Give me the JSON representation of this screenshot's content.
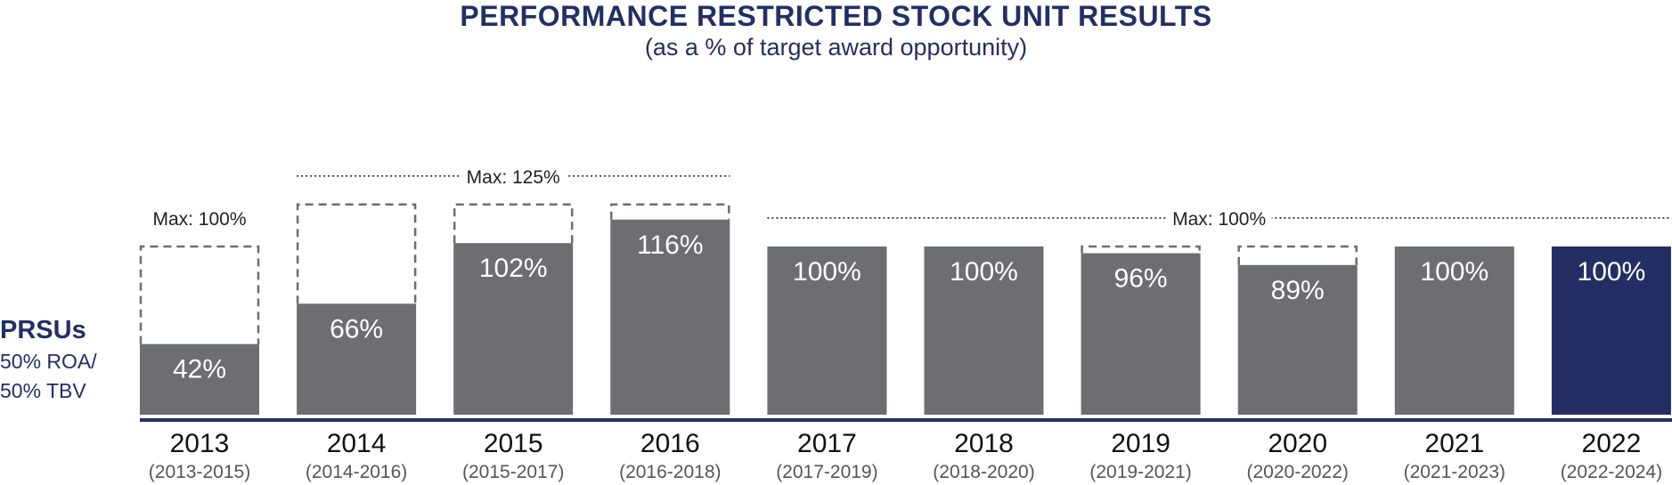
{
  "title": "PERFORMANCE RESTRICTED STOCK UNIT RESULTS",
  "subtitle": "(as a % of target award opportunity)",
  "side_label": {
    "title": "PRSUs",
    "line1": "50% ROA/",
    "line2": "50%  TBV"
  },
  "colors": {
    "bar": "#6d6e71",
    "highlight_bar": "#232f64",
    "text_navy": "#232f64",
    "axis": "#232f64",
    "dashed": "#6d6e71"
  },
  "chart_data": {
    "type": "bar",
    "categories": [
      "2013",
      "2014",
      "2015",
      "2016",
      "2017",
      "2018",
      "2019",
      "2020",
      "2021",
      "2022"
    ],
    "periods": [
      "(2013-2015)",
      "(2014-2016)",
      "(2015-2017)",
      "(2016-2018)",
      "(2017-2019)",
      "(2018-2020)",
      "(2019-2021)",
      "(2020-2022)",
      "(2021-2023)",
      "(2022-2024)"
    ],
    "values": [
      42,
      66,
      102,
      116,
      100,
      100,
      96,
      89,
      100,
      100
    ],
    "value_labels": [
      "42%",
      "66%",
      "102%",
      "116%",
      "100%",
      "100%",
      "96%",
      "89%",
      "100%",
      "100%"
    ],
    "max_values": [
      100,
      125,
      125,
      125,
      100,
      100,
      100,
      100,
      100,
      100
    ],
    "highlight_index": 9,
    "max_annotations": [
      {
        "label": "Max: 100%",
        "from": 0,
        "to": 0,
        "style": "text"
      },
      {
        "label": "Max: 125%",
        "from": 1,
        "to": 3,
        "style": "dotted"
      },
      {
        "label": "Max: 100%",
        "from": 4,
        "to": 9,
        "style": "dotted"
      }
    ],
    "ylim": [
      0,
      125
    ]
  }
}
